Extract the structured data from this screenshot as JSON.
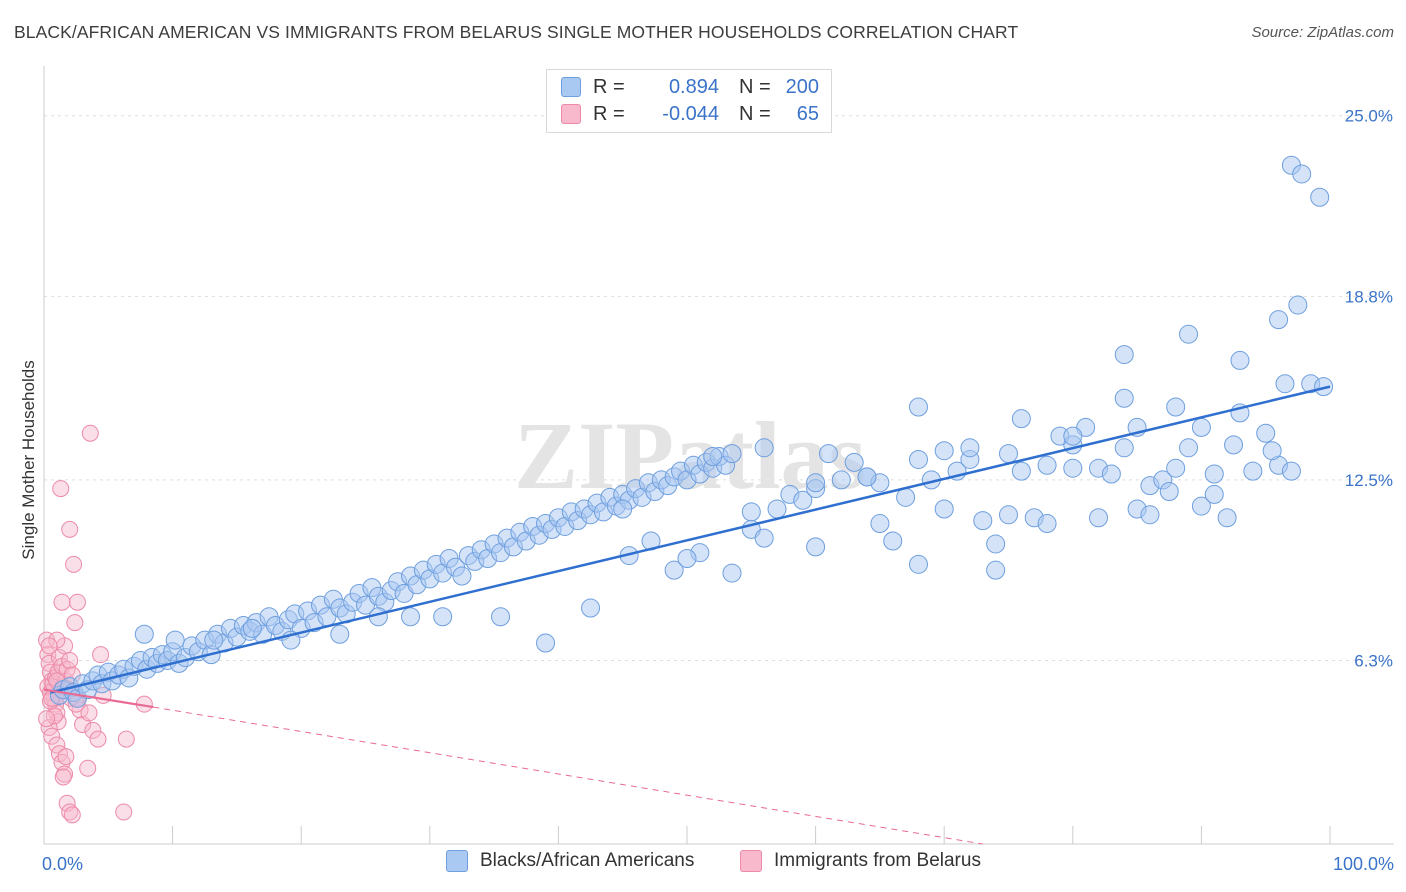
{
  "title": "BLACK/AFRICAN AMERICAN VS IMMIGRANTS FROM BELARUS SINGLE MOTHER HOUSEHOLDS CORRELATION CHART",
  "source": "Source: ZipAtlas.com",
  "watermark": "ZIPatlas",
  "legend": {
    "row1": {
      "r_label": "R =",
      "r_value": "0.894",
      "n_label": "N =",
      "n_value": "200"
    },
    "row2": {
      "r_label": "R =",
      "r_value": "-0.044",
      "n_label": "N =",
      "n_value": "65"
    }
  },
  "bottom_legend": {
    "series1": "Blacks/African Americans",
    "series2": "Immigrants from Belarus"
  },
  "colors": {
    "blue_fill": "#a9c8f2",
    "blue_stroke": "#6e9fde",
    "blue_line": "#2f6fcf",
    "pink_fill": "#f7b9cb",
    "pink_stroke": "#ec8aa8",
    "pink_line": "#e86b94",
    "tick_text": "#3a73c9",
    "grid": "#dddddd"
  },
  "chart_data": {
    "type": "scatter",
    "title": "BLACK/AFRICAN AMERICAN VS IMMIGRANTS FROM BELARUS SINGLE MOTHER HOUSEHOLDS CORRELATION CHART",
    "xlabel": "",
    "ylabel": "Single Mother Households",
    "xlim": [
      0,
      100
    ],
    "ylim": [
      0,
      26.5
    ],
    "x_tick_labels": [
      "0.0%",
      "100.0%"
    ],
    "y_ticks": [
      6.3,
      12.5,
      18.8,
      25.0
    ],
    "y_tick_labels": [
      "6.3%",
      "12.5%",
      "18.8%",
      "25.0%"
    ],
    "series": [
      {
        "name": "Blacks/African Americans",
        "color": "#a9c8f2",
        "R": 0.894,
        "N": 200,
        "trend": {
          "x": [
            0.5,
            100
          ],
          "y": [
            5.2,
            15.7
          ]
        },
        "points": [
          [
            1.2,
            5.1
          ],
          [
            1.5,
            5.3
          ],
          [
            2.0,
            5.4
          ],
          [
            2.3,
            5.2
          ],
          [
            2.6,
            5.0
          ],
          [
            3.0,
            5.5
          ],
          [
            3.4,
            5.3
          ],
          [
            3.8,
            5.6
          ],
          [
            4.2,
            5.8
          ],
          [
            4.5,
            5.5
          ],
          [
            5.0,
            5.9
          ],
          [
            5.3,
            5.6
          ],
          [
            5.8,
            5.8
          ],
          [
            6.2,
            6.0
          ],
          [
            6.6,
            5.7
          ],
          [
            7.0,
            6.1
          ],
          [
            7.5,
            6.3
          ],
          [
            8.0,
            6.0
          ],
          [
            8.4,
            6.4
          ],
          [
            8.8,
            6.2
          ],
          [
            9.2,
            6.5
          ],
          [
            9.6,
            6.3
          ],
          [
            10.0,
            6.6
          ],
          [
            10.5,
            6.2
          ],
          [
            11.0,
            6.4
          ],
          [
            11.5,
            6.8
          ],
          [
            12.0,
            6.6
          ],
          [
            12.5,
            7.0
          ],
          [
            13.0,
            6.5
          ],
          [
            13.5,
            7.2
          ],
          [
            14.0,
            6.9
          ],
          [
            14.5,
            7.4
          ],
          [
            15.0,
            7.1
          ],
          [
            15.5,
            7.5
          ],
          [
            16.0,
            7.3
          ],
          [
            16.5,
            7.6
          ],
          [
            17.0,
            7.2
          ],
          [
            17.5,
            7.8
          ],
          [
            18.0,
            7.5
          ],
          [
            18.5,
            7.3
          ],
          [
            19.0,
            7.7
          ],
          [
            19.5,
            7.9
          ],
          [
            20.0,
            7.4
          ],
          [
            20.5,
            8.0
          ],
          [
            21.0,
            7.6
          ],
          [
            21.5,
            8.2
          ],
          [
            22.0,
            7.8
          ],
          [
            22.5,
            8.4
          ],
          [
            23.0,
            8.1
          ],
          [
            23.5,
            7.9
          ],
          [
            24.0,
            8.3
          ],
          [
            24.5,
            8.6
          ],
          [
            25.0,
            8.2
          ],
          [
            25.5,
            8.8
          ],
          [
            26.0,
            8.5
          ],
          [
            26.5,
            8.3
          ],
          [
            27.0,
            8.7
          ],
          [
            27.5,
            9.0
          ],
          [
            28.0,
            8.6
          ],
          [
            28.5,
            9.2
          ],
          [
            29.0,
            8.9
          ],
          [
            29.5,
            9.4
          ],
          [
            30.0,
            9.1
          ],
          [
            30.5,
            9.6
          ],
          [
            31.0,
            9.3
          ],
          [
            31.5,
            9.8
          ],
          [
            32.0,
            9.5
          ],
          [
            32.5,
            9.2
          ],
          [
            33.0,
            9.9
          ],
          [
            33.5,
            9.7
          ],
          [
            34.0,
            10.1
          ],
          [
            34.5,
            9.8
          ],
          [
            35.0,
            10.3
          ],
          [
            35.5,
            10.0
          ],
          [
            36.0,
            10.5
          ],
          [
            36.5,
            10.2
          ],
          [
            37.0,
            10.7
          ],
          [
            37.5,
            10.4
          ],
          [
            38.0,
            10.9
          ],
          [
            38.5,
            10.6
          ],
          [
            39.0,
            11.0
          ],
          [
            39.5,
            10.8
          ],
          [
            40.0,
            11.2
          ],
          [
            40.5,
            10.9
          ],
          [
            41.0,
            11.4
          ],
          [
            41.5,
            11.1
          ],
          [
            42.0,
            11.5
          ],
          [
            42.5,
            11.3
          ],
          [
            43.0,
            11.7
          ],
          [
            43.5,
            11.4
          ],
          [
            44.0,
            11.9
          ],
          [
            44.5,
            11.6
          ],
          [
            45.0,
            12.0
          ],
          [
            45.5,
            11.8
          ],
          [
            46.0,
            12.2
          ],
          [
            46.5,
            11.9
          ],
          [
            47.0,
            12.4
          ],
          [
            47.5,
            12.1
          ],
          [
            48.0,
            12.5
          ],
          [
            48.5,
            12.3
          ],
          [
            49.0,
            12.6
          ],
          [
            49.5,
            12.8
          ],
          [
            50.0,
            12.5
          ],
          [
            50.5,
            13.0
          ],
          [
            51.0,
            12.7
          ],
          [
            51.5,
            13.1
          ],
          [
            52.0,
            12.9
          ],
          [
            52.5,
            13.3
          ],
          [
            53.0,
            13.0
          ],
          [
            53.5,
            13.4
          ],
          [
            7.8,
            7.2
          ],
          [
            10.2,
            7.0
          ],
          [
            13.2,
            7.0
          ],
          [
            16.2,
            7.4
          ],
          [
            19.2,
            7.0
          ],
          [
            23.0,
            7.2
          ],
          [
            26.0,
            7.8
          ],
          [
            28.5,
            7.8
          ],
          [
            31.0,
            7.8
          ],
          [
            35.5,
            7.8
          ],
          [
            39.0,
            6.9
          ],
          [
            42.5,
            8.1
          ],
          [
            45.5,
            9.9
          ],
          [
            47.2,
            10.4
          ],
          [
            49.0,
            9.4
          ],
          [
            51.0,
            10.0
          ],
          [
            53.5,
            9.3
          ],
          [
            55.0,
            10.8
          ],
          [
            56.0,
            10.5
          ],
          [
            57.0,
            11.5
          ],
          [
            58.0,
            12.0
          ],
          [
            59.0,
            11.8
          ],
          [
            60.0,
            12.2
          ],
          [
            61.0,
            13.4
          ],
          [
            62.0,
            12.5
          ],
          [
            63.0,
            13.1
          ],
          [
            64.0,
            12.6
          ],
          [
            65.0,
            11.0
          ],
          [
            66.0,
            10.4
          ],
          [
            67.0,
            11.9
          ],
          [
            68.0,
            13.2
          ],
          [
            69.0,
            12.5
          ],
          [
            70.0,
            13.5
          ],
          [
            71.0,
            12.8
          ],
          [
            72.0,
            13.2
          ],
          [
            73.0,
            11.1
          ],
          [
            74.0,
            10.3
          ],
          [
            75.0,
            13.4
          ],
          [
            76.0,
            12.8
          ],
          [
            77.0,
            11.2
          ],
          [
            78.0,
            13.0
          ],
          [
            79.0,
            14.0
          ],
          [
            80.0,
            13.7
          ],
          [
            81.0,
            14.3
          ],
          [
            82.0,
            12.9
          ],
          [
            83.0,
            12.7
          ],
          [
            84.0,
            13.6
          ],
          [
            85.0,
            14.3
          ],
          [
            86.0,
            12.3
          ],
          [
            87.0,
            12.5
          ],
          [
            88.0,
            12.9
          ],
          [
            89.0,
            13.6
          ],
          [
            90.0,
            14.3
          ],
          [
            91.0,
            12.7
          ],
          [
            92.0,
            11.2
          ],
          [
            93.0,
            14.8
          ],
          [
            94.0,
            12.8
          ],
          [
            95.0,
            14.1
          ],
          [
            96.0,
            13.0
          ],
          [
            97.0,
            12.8
          ],
          [
            45.0,
            11.5
          ],
          [
            50.0,
            9.8
          ],
          [
            55.0,
            11.4
          ],
          [
            60.0,
            10.2
          ],
          [
            65.0,
            12.4
          ],
          [
            70.0,
            11.5
          ],
          [
            75.0,
            11.3
          ],
          [
            80.0,
            12.9
          ],
          [
            85.0,
            11.5
          ],
          [
            90.0,
            11.6
          ],
          [
            52.0,
            13.3
          ],
          [
            56.0,
            13.6
          ],
          [
            60.0,
            12.4
          ],
          [
            64.0,
            12.6
          ],
          [
            68.0,
            15.0
          ],
          [
            72.0,
            13.6
          ],
          [
            76.0,
            14.6
          ],
          [
            80.0,
            14.0
          ],
          [
            84.0,
            15.3
          ],
          [
            88.0,
            15.0
          ],
          [
            93.0,
            16.6
          ],
          [
            96.0,
            18.0
          ],
          [
            97.5,
            18.5
          ],
          [
            98.5,
            15.8
          ],
          [
            99.5,
            15.7
          ],
          [
            96.5,
            15.8
          ],
          [
            89.0,
            17.5
          ],
          [
            84.0,
            16.8
          ],
          [
            95.5,
            13.5
          ],
          [
            92.5,
            13.7
          ],
          [
            97.0,
            23.3
          ],
          [
            97.8,
            23.0
          ],
          [
            99.2,
            22.2
          ],
          [
            91.0,
            12.0
          ],
          [
            87.5,
            12.1
          ],
          [
            86.0,
            11.3
          ],
          [
            82.0,
            11.2
          ],
          [
            78.0,
            11.0
          ],
          [
            74.0,
            9.4
          ],
          [
            68.0,
            9.6
          ]
        ]
      },
      {
        "name": "Immigrants from Belarus",
        "color": "#f7b9cb",
        "R": -0.044,
        "N": 65,
        "trend": {
          "x": [
            0,
            8.5
          ],
          "y": [
            5.3,
            4.7
          ],
          "dashed_extension": {
            "x": [
              8.5,
              73
            ],
            "y": [
              4.7,
              0
            ]
          }
        },
        "points": [
          [
            0.2,
            7.0
          ],
          [
            0.3,
            6.5
          ],
          [
            0.4,
            6.2
          ],
          [
            0.5,
            5.9
          ],
          [
            0.6,
            5.6
          ],
          [
            0.7,
            5.3
          ],
          [
            0.8,
            5.0
          ],
          [
            0.9,
            4.8
          ],
          [
            1.0,
            4.5
          ],
          [
            1.1,
            4.2
          ],
          [
            0.3,
            5.4
          ],
          [
            0.5,
            5.2
          ],
          [
            0.7,
            5.5
          ],
          [
            0.9,
            5.7
          ],
          [
            1.1,
            5.9
          ],
          [
            1.3,
            5.1
          ],
          [
            1.5,
            5.4
          ],
          [
            1.7,
            5.6
          ],
          [
            1.9,
            5.3
          ],
          [
            2.1,
            5.0
          ],
          [
            0.4,
            4.0
          ],
          [
            0.6,
            3.7
          ],
          [
            0.8,
            4.4
          ],
          [
            1.0,
            3.4
          ],
          [
            1.2,
            3.1
          ],
          [
            1.4,
            2.8
          ],
          [
            1.6,
            2.4
          ],
          [
            1.8,
            1.4
          ],
          [
            2.0,
            1.1
          ],
          [
            2.2,
            1.0
          ],
          [
            1.2,
            6.4
          ],
          [
            1.4,
            6.1
          ],
          [
            1.6,
            6.8
          ],
          [
            1.8,
            6.0
          ],
          [
            2.0,
            6.3
          ],
          [
            2.2,
            5.8
          ],
          [
            2.4,
            5.2
          ],
          [
            2.6,
            5.0
          ],
          [
            2.8,
            4.6
          ],
          [
            3.0,
            4.1
          ],
          [
            1.3,
            12.2
          ],
          [
            2.0,
            10.8
          ],
          [
            2.3,
            9.6
          ],
          [
            2.6,
            8.3
          ],
          [
            1.4,
            8.3
          ],
          [
            2.4,
            7.6
          ],
          [
            1.0,
            7.0
          ],
          [
            3.5,
            4.5
          ],
          [
            3.8,
            3.9
          ],
          [
            4.2,
            3.6
          ],
          [
            4.4,
            6.5
          ],
          [
            4.6,
            5.1
          ],
          [
            3.4,
            2.6
          ],
          [
            6.2,
            1.1
          ],
          [
            6.4,
            3.6
          ],
          [
            7.8,
            4.8
          ],
          [
            0.2,
            4.3
          ],
          [
            0.4,
            6.8
          ],
          [
            0.5,
            4.9
          ],
          [
            0.6,
            5.0
          ],
          [
            1.0,
            5.6
          ],
          [
            1.5,
            2.3
          ],
          [
            1.7,
            3.0
          ],
          [
            2.5,
            4.8
          ],
          [
            3.6,
            14.1
          ]
        ]
      }
    ]
  }
}
